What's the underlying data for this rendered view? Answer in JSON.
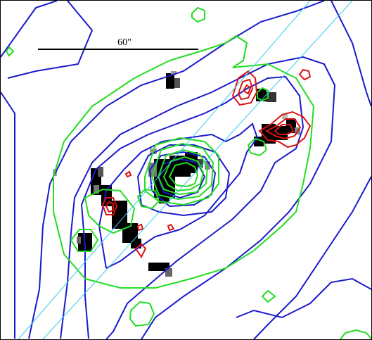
{
  "scale_bar": {
    "label": "60\""
  },
  "colors": {
    "blue_contours": "#1a1acc",
    "green_contours": "#22dd22",
    "red_contours": "#dd1111",
    "cyan_lines": "#33ccee",
    "pixels_dark": "#000000"
  }
}
